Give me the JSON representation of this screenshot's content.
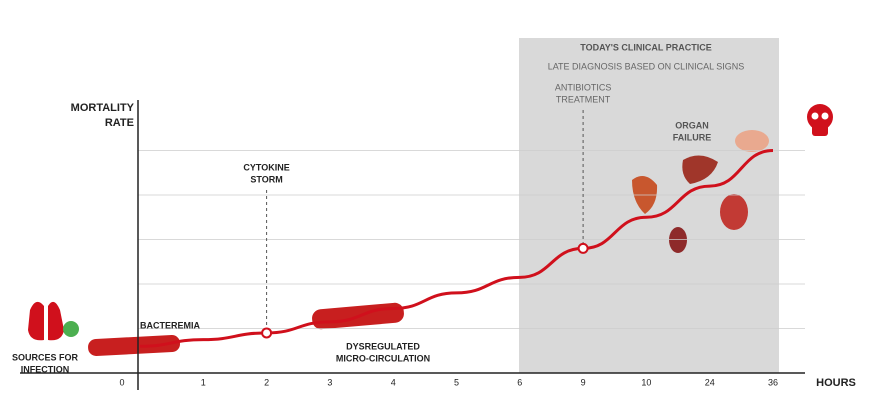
{
  "chart_data": {
    "type": "line",
    "y_label": [
      "MORTALITY",
      "RATE"
    ],
    "x_label": "HOURS",
    "categories": [
      "0",
      "1",
      "2",
      "3",
      "4",
      "5",
      "6",
      "9",
      "10",
      "24",
      "36"
    ],
    "values": [
      0.6,
      0.75,
      0.9,
      1.15,
      1.45,
      1.8,
      2.15,
      2.8,
      3.5,
      4.2,
      5.0
    ],
    "color": "#d0101c",
    "ylim": [
      0,
      6
    ],
    "grid_lines": [
      1,
      2,
      3,
      4,
      5
    ],
    "highlight": {
      "title": "TODAY'S CLINICAL PRACTICE",
      "subtitle": "LATE DIAGNOSIS BASED ON CLINICAL SIGNS"
    },
    "markers": [
      {
        "category": "2",
        "text": [
          "CYTOKINE",
          "STORM"
        ]
      },
      {
        "category": "9",
        "text": [
          "ANTIBIOTICS",
          "TREATMENT"
        ]
      }
    ],
    "labels": [
      [
        "SOURCES FOR",
        "INFECTION"
      ],
      [
        "BACTEREMIA"
      ],
      [
        "DYSREGULATED",
        "MICRO-CIRCULATION"
      ],
      [
        "ORGAN",
        "FAILURE"
      ]
    ]
  }
}
